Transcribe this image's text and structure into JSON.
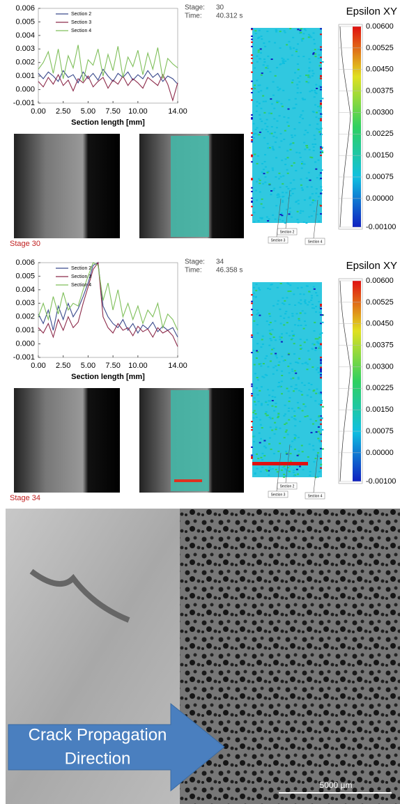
{
  "chart_data": [
    {
      "type": "line",
      "x": [
        0,
        0.5,
        1,
        1.5,
        2,
        2.5,
        3,
        3.5,
        4,
        4.5,
        5,
        5.5,
        6,
        6.5,
        7,
        7.5,
        8,
        8.5,
        9,
        9.5,
        10,
        10.5,
        11,
        11.5,
        12,
        12.5,
        13,
        13.5,
        14
      ],
      "xlabel": "Section length [mm]",
      "xlim": [
        0,
        14
      ],
      "ylim": [
        -0.001,
        0.006
      ],
      "xticks": [
        {
          "value": 0,
          "label": "0.00"
        },
        {
          "value": 2.5,
          "label": "2.50"
        },
        {
          "value": 5,
          "label": "5.00"
        },
        {
          "value": 7.5,
          "label": "7.50"
        },
        {
          "value": 10,
          "label": "10.00"
        },
        {
          "value": 14,
          "label": "14.00"
        }
      ],
      "yticks": [
        {
          "value": -0.001,
          "label": "-0.001"
        },
        {
          "value": 0,
          "label": "0.000"
        },
        0.001,
        0.002,
        0.003,
        0.004,
        0.005,
        0.006
      ],
      "legend": "upper left",
      "series": [
        {
          "name": "Section 2",
          "color": "#3a4a8c",
          "values": [
            0.0012,
            0.0008,
            0.0013,
            0.001,
            0.0006,
            0.0014,
            0.0009,
            0.0011,
            0.0005,
            0.0013,
            0.0008,
            0.0012,
            0.0007,
            0.0015,
            0.001,
            0.0006,
            0.0012,
            0.0009,
            0.0013,
            0.0007,
            0.0011,
            0.0008,
            0.0014,
            0.0009,
            0.0012,
            0.0006,
            0.001,
            0.0008,
            0.0004
          ]
        },
        {
          "name": "Section 3",
          "color": "#8c2a4a",
          "values": [
            0.0006,
            0.0002,
            0.0009,
            0.0004,
            0.0011,
            0.0003,
            0.0007,
            -0.0001,
            0.0008,
            0.0005,
            0.001,
            0.0002,
            0.0006,
            0.0009,
            0.0001,
            0.0007,
            0.0004,
            0.001,
            0.0003,
            0.0008,
            0.0005,
            0.0001,
            0.0009,
            0.0006,
            0.0003,
            0.0011,
            0.0004,
            -0.0008,
            0.0005
          ]
        },
        {
          "name": "Section 4",
          "color": "#7fbf5a",
          "values": [
            0.0015,
            0.002,
            0.0028,
            0.0012,
            0.003,
            0.0008,
            0.0025,
            0.0016,
            0.0033,
            0.0006,
            0.0022,
            0.0018,
            0.003,
            0.001,
            0.0026,
            0.0014,
            0.0032,
            0.0009,
            0.0024,
            0.0017,
            0.0029,
            0.0011,
            0.0027,
            0.0015,
            0.0031,
            0.0008,
            0.0023,
            0.0019,
            0.0016
          ]
        }
      ]
    },
    {
      "type": "line",
      "x": [
        0,
        0.5,
        1,
        1.5,
        2,
        2.5,
        3,
        3.5,
        4,
        4.5,
        5,
        5.5,
        6,
        6.5,
        7,
        7.5,
        8,
        8.5,
        9,
        9.5,
        10,
        10.5,
        11,
        11.5,
        12,
        12.5,
        13,
        13.5,
        14
      ],
      "xlabel": "Section length [mm]",
      "xlim": [
        0,
        14
      ],
      "ylim": [
        -0.001,
        0.006
      ],
      "xticks": [
        {
          "value": 0,
          "label": "0.00"
        },
        {
          "value": 2.5,
          "label": "2.50"
        },
        {
          "value": 5,
          "label": "5.00"
        },
        {
          "value": 7.5,
          "label": "7.50"
        },
        {
          "value": 10,
          "label": "10.00"
        },
        {
          "value": 14,
          "label": "14.00"
        }
      ],
      "yticks": [
        {
          "value": -0.001,
          "label": "-0.001"
        },
        {
          "value": 0,
          "label": "0.000"
        },
        0.001,
        0.002,
        0.003,
        0.004,
        0.005,
        0.006
      ],
      "legend": "upper left",
      "series": [
        {
          "name": "Section 2",
          "color": "#3a4a8c",
          "values": [
            0.0022,
            0.0015,
            0.0025,
            0.001,
            0.0028,
            0.0018,
            0.003,
            0.002,
            0.0026,
            0.0035,
            0.0045,
            0.0058,
            0.006,
            0.0028,
            0.002,
            0.0015,
            0.0012,
            0.0018,
            0.001,
            0.0015,
            0.0008,
            0.0014,
            0.0011,
            0.0016,
            0.0009,
            0.0013,
            0.001,
            0.0012,
            0.0005
          ]
        },
        {
          "name": "Section 3",
          "color": "#8c2a4a",
          "values": [
            0.0012,
            0.0008,
            0.0015,
            0.0005,
            0.0018,
            0.001,
            0.002,
            0.0012,
            0.0016,
            0.003,
            0.0042,
            0.0055,
            0.006,
            0.002,
            0.0012,
            0.0008,
            0.0015,
            0.001,
            0.0012,
            0.0006,
            0.0013,
            0.0009,
            0.0011,
            0.0005,
            0.0012,
            0.0008,
            0.001,
            0.0006,
            -0.0002
          ]
        },
        {
          "name": "Section 4",
          "color": "#7fbf5a",
          "values": [
            0.002,
            0.003,
            0.0018,
            0.0035,
            0.0022,
            0.0038,
            0.0025,
            0.003,
            0.0028,
            0.004,
            0.005,
            0.006,
            0.0058,
            0.0032,
            0.0045,
            0.0025,
            0.004,
            0.002,
            0.003,
            0.0018,
            0.0028,
            0.0015,
            0.0025,
            0.002,
            0.003,
            0.0012,
            0.0022,
            0.0018,
            0.001
          ]
        }
      ]
    }
  ],
  "panels": [
    {
      "stage_key": "Stage:",
      "stage": "30",
      "time_key": "Time:",
      "time": "40.312 s",
      "stage_label": "Stage 30",
      "section_labels": [
        "Section 2",
        "Section 3",
        "Section 4"
      ]
    },
    {
      "stage_key": "Stage:",
      "stage": "34",
      "time_key": "Time:",
      "time": "46.358 s",
      "stage_label": "Stage 34",
      "section_labels": [
        "Section 2",
        "Section 3",
        "Section 4"
      ]
    }
  ],
  "colorbar": {
    "title": "Epsilon XY",
    "lim": [
      -0.001,
      0.006
    ],
    "ticks": [
      {
        "value": 0.006,
        "label": "0.00600"
      },
      {
        "value": 0.00525,
        "label": "0.00525"
      },
      {
        "value": 0.0045,
        "label": "0.00450"
      },
      {
        "value": 0.00375,
        "label": "0.00375"
      },
      {
        "value": 0.003,
        "label": "0.00300"
      },
      {
        "value": 0.00225,
        "label": "0.00225"
      },
      {
        "value": 0.0015,
        "label": "0.00150"
      },
      {
        "value": 0.00075,
        "label": "0.00075"
      },
      {
        "value": 0,
        "label": "0.00000"
      },
      {
        "value": -0.001,
        "label": "-0.00100"
      }
    ]
  },
  "photo": {
    "arrow_text": [
      "Crack Propagation",
      "Direction"
    ],
    "scale_bar": "5000 µm"
  }
}
